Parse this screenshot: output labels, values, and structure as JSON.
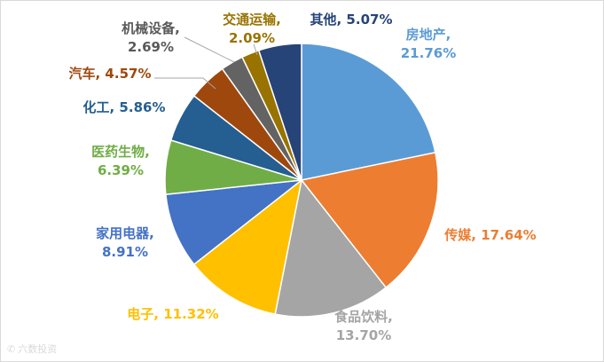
{
  "chart_data": {
    "type": "pie",
    "unit": "%",
    "slices": [
      {
        "label": "房地产",
        "value": 21.76,
        "display": "21.76%",
        "color": "#5b9bd5",
        "label_color": "#5b9bd5"
      },
      {
        "label": "传媒",
        "value": 17.64,
        "display": "17.64%",
        "color": "#ed7d31",
        "label_color": "#ed7d31"
      },
      {
        "label": "食品饮料",
        "value": 13.7,
        "display": "13.70%",
        "color": "#a5a5a5",
        "label_color": "#a5a5a5"
      },
      {
        "label": "电子",
        "value": 11.32,
        "display": "11.32%",
        "color": "#ffc000",
        "label_color": "#ffc000"
      },
      {
        "label": "家用电器",
        "value": 8.91,
        "display": "8.91%",
        "color": "#4472c4",
        "label_color": "#4472c4"
      },
      {
        "label": "医药生物",
        "value": 6.39,
        "display": "6.39%",
        "color": "#70ad47",
        "label_color": "#70ad47"
      },
      {
        "label": "化工",
        "value": 5.86,
        "display": "5.86%",
        "color": "#255e91",
        "label_color": "#255e91"
      },
      {
        "label": "汽车",
        "value": 4.57,
        "display": "4.57%",
        "color": "#9e480e",
        "label_color": "#9e480e"
      },
      {
        "label": "机械设备",
        "value": 2.69,
        "display": "2.69%",
        "color": "#636363",
        "label_color": "#595959"
      },
      {
        "label": "交通运输",
        "value": 2.09,
        "display": "2.09%",
        "color": "#997300",
        "label_color": "#997300"
      },
      {
        "label": "其他",
        "value": 5.07,
        "display": "5.07%",
        "color": "#264478",
        "label_color": "#264478"
      }
    ]
  },
  "watermark": {
    "icon": "wechat-icon",
    "text": "六数投资"
  }
}
